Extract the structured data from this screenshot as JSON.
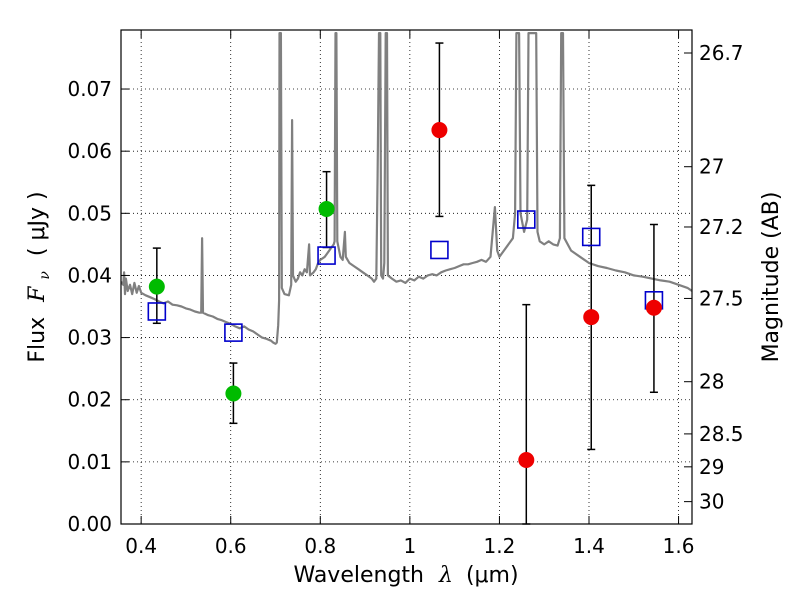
{
  "chart_data": {
    "type": "scatter",
    "xlabel_main": "Wavelength",
    "xlabel_symbol": "λ",
    "xlabel_unit": "(μm)",
    "ylabel_main": "Flux",
    "ylabel_symbol": "F",
    "ylabel_subscript": "ν",
    "ylabel_unit": "( μJy )",
    "y2label": "Magnitude (AB)",
    "xlim": [
      0.355,
      1.63
    ],
    "ylim": [
      0.0,
      0.0795
    ],
    "grid": true,
    "x_ticks": [
      0.4,
      0.6,
      0.8,
      1.0,
      1.2,
      1.4,
      1.6
    ],
    "x_tick_labels": [
      "0.4",
      "0.6",
      "0.8",
      "1",
      "1.2",
      "1.4",
      "1.6"
    ],
    "y_ticks": [
      0.0,
      0.01,
      0.02,
      0.03,
      0.04,
      0.05,
      0.06,
      0.07
    ],
    "y_tick_labels": [
      "0.00",
      "0.01",
      "0.02",
      "0.03",
      "0.04",
      "0.05",
      "0.06",
      "0.07"
    ],
    "mag_ticks": [
      {
        "flux": 0.0758,
        "label": "26.7"
      },
      {
        "flux": 0.0575,
        "label": "27"
      },
      {
        "flux": 0.0478,
        "label": "27.2"
      },
      {
        "flux": 0.0363,
        "label": "27.5"
      },
      {
        "flux": 0.0229,
        "label": "28"
      },
      {
        "flux": 0.0145,
        "label": "28.5"
      },
      {
        "flux": 0.0092,
        "label": "29"
      },
      {
        "flux": 0.0036,
        "label": "30"
      }
    ],
    "colors": {
      "spectrum": "#808080",
      "model": "#0000cc",
      "green": "#00bb00",
      "red": "#ee0000",
      "errorbar": "#000000"
    },
    "model_squares": [
      {
        "x": 0.435,
        "y": 0.0342
      },
      {
        "x": 0.606,
        "y": 0.0308
      },
      {
        "x": 0.814,
        "y": 0.0432
      },
      {
        "x": 1.066,
        "y": 0.0441
      },
      {
        "x": 1.26,
        "y": 0.049
      },
      {
        "x": 1.405,
        "y": 0.0462
      },
      {
        "x": 1.545,
        "y": 0.036
      }
    ],
    "series": [
      {
        "name": "green",
        "points": [
          {
            "x": 0.435,
            "y": 0.0382,
            "ylo": 0.0323,
            "yhi": 0.0444
          },
          {
            "x": 0.606,
            "y": 0.021,
            "ylo": 0.0162,
            "yhi": 0.0259
          },
          {
            "x": 0.814,
            "y": 0.0507,
            "ylo": 0.0445,
            "yhi": 0.0567
          }
        ]
      },
      {
        "name": "red",
        "points": [
          {
            "x": 1.066,
            "y": 0.0634,
            "ylo": 0.0495,
            "yhi": 0.0774
          },
          {
            "x": 1.26,
            "y": 0.0103,
            "ylo": 0.0,
            "yhi": 0.0353
          },
          {
            "x": 1.405,
            "y": 0.0333,
            "ylo": 0.012,
            "yhi": 0.0545
          },
          {
            "x": 1.545,
            "y": 0.0348,
            "ylo": 0.0212,
            "yhi": 0.0482
          }
        ]
      }
    ],
    "spectrum": [
      [
        0.355,
        0.039
      ],
      [
        0.36,
        0.0385
      ],
      [
        0.362,
        0.0405
      ],
      [
        0.364,
        0.037
      ],
      [
        0.366,
        0.0395
      ],
      [
        0.37,
        0.0375
      ],
      [
        0.375,
        0.0385
      ],
      [
        0.38,
        0.037
      ],
      [
        0.385,
        0.0388
      ],
      [
        0.39,
        0.0372
      ],
      [
        0.395,
        0.0383
      ],
      [
        0.4,
        0.0372
      ],
      [
        0.41,
        0.0368
      ],
      [
        0.42,
        0.0365
      ],
      [
        0.43,
        0.0362
      ],
      [
        0.44,
        0.0358
      ],
      [
        0.45,
        0.0355
      ],
      [
        0.46,
        0.0358
      ],
      [
        0.47,
        0.0353
      ],
      [
        0.48,
        0.0352
      ],
      [
        0.49,
        0.035
      ],
      [
        0.5,
        0.0347
      ],
      [
        0.51,
        0.0345
      ],
      [
        0.52,
        0.0342
      ],
      [
        0.53,
        0.034
      ],
      [
        0.534,
        0.034
      ],
      [
        0.536,
        0.046
      ],
      [
        0.538,
        0.034
      ],
      [
        0.55,
        0.0336
      ],
      [
        0.56,
        0.0334
      ],
      [
        0.57,
        0.033
      ],
      [
        0.58,
        0.0328
      ],
      [
        0.59,
        0.0325
      ],
      [
        0.6,
        0.0322
      ],
      [
        0.61,
        0.0318
      ],
      [
        0.62,
        0.0315
      ],
      [
        0.63,
        0.0318
      ],
      [
        0.64,
        0.0313
      ],
      [
        0.65,
        0.031
      ],
      [
        0.66,
        0.0305
      ],
      [
        0.67,
        0.03
      ],
      [
        0.68,
        0.0298
      ],
      [
        0.69,
        0.0295
      ],
      [
        0.695,
        0.0292
      ],
      [
        0.7,
        0.029
      ],
      [
        0.703,
        0.0292
      ],
      [
        0.706,
        0.032
      ],
      [
        0.708,
        0.036
      ],
      [
        0.709,
        0.079
      ],
      [
        0.712,
        0.079
      ],
      [
        0.714,
        0.038
      ],
      [
        0.72,
        0.037
      ],
      [
        0.73,
        0.0368
      ],
      [
        0.735,
        0.0385
      ],
      [
        0.737,
        0.065
      ],
      [
        0.739,
        0.04
      ],
      [
        0.745,
        0.039
      ],
      [
        0.75,
        0.0395
      ],
      [
        0.755,
        0.0405
      ],
      [
        0.76,
        0.04
      ],
      [
        0.765,
        0.041
      ],
      [
        0.77,
        0.0405
      ],
      [
        0.775,
        0.045
      ],
      [
        0.777,
        0.04
      ],
      [
        0.785,
        0.0405
      ],
      [
        0.79,
        0.041
      ],
      [
        0.795,
        0.042
      ],
      [
        0.8,
        0.0425
      ],
      [
        0.81,
        0.043
      ],
      [
        0.82,
        0.044
      ],
      [
        0.83,
        0.045
      ],
      [
        0.832,
        0.0455
      ],
      [
        0.834,
        0.079
      ],
      [
        0.836,
        0.079
      ],
      [
        0.838,
        0.0455
      ],
      [
        0.845,
        0.043
      ],
      [
        0.85,
        0.0425
      ],
      [
        0.855,
        0.047
      ],
      [
        0.857,
        0.043
      ],
      [
        0.865,
        0.042
      ],
      [
        0.875,
        0.0415
      ],
      [
        0.885,
        0.041
      ],
      [
        0.895,
        0.0405
      ],
      [
        0.905,
        0.04
      ],
      [
        0.915,
        0.0395
      ],
      [
        0.92,
        0.039
      ],
      [
        0.925,
        0.0395
      ],
      [
        0.928,
        0.056
      ],
      [
        0.931,
        0.079
      ],
      [
        0.934,
        0.079
      ],
      [
        0.936,
        0.04
      ],
      [
        0.94,
        0.0395
      ],
      [
        0.943,
        0.042
      ],
      [
        0.946,
        0.079
      ],
      [
        0.949,
        0.079
      ],
      [
        0.951,
        0.04
      ],
      [
        0.96,
        0.0395
      ],
      [
        0.97,
        0.039
      ],
      [
        0.98,
        0.0392
      ],
      [
        0.99,
        0.0388
      ],
      [
        1.0,
        0.0395
      ],
      [
        1.01,
        0.0392
      ],
      [
        1.02,
        0.0398
      ],
      [
        1.03,
        0.0395
      ],
      [
        1.04,
        0.04
      ],
      [
        1.05,
        0.0402
      ],
      [
        1.06,
        0.04
      ],
      [
        1.07,
        0.0405
      ],
      [
        1.08,
        0.0408
      ],
      [
        1.09,
        0.041
      ],
      [
        1.1,
        0.0412
      ],
      [
        1.11,
        0.0415
      ],
      [
        1.12,
        0.0418
      ],
      [
        1.13,
        0.0418
      ],
      [
        1.14,
        0.042
      ],
      [
        1.15,
        0.0422
      ],
      [
        1.16,
        0.0425
      ],
      [
        1.17,
        0.0422
      ],
      [
        1.18,
        0.043
      ],
      [
        1.185,
        0.047
      ],
      [
        1.19,
        0.051
      ],
      [
        1.195,
        0.044
      ],
      [
        1.2,
        0.043
      ],
      [
        1.21,
        0.044
      ],
      [
        1.22,
        0.045
      ],
      [
        1.23,
        0.046
      ],
      [
        1.235,
        0.05
      ],
      [
        1.238,
        0.079
      ],
      [
        1.244,
        0.079
      ],
      [
        1.247,
        0.05
      ],
      [
        1.255,
        0.047
      ],
      [
        1.262,
        0.049
      ],
      [
        1.265,
        0.079
      ],
      [
        1.282,
        0.079
      ],
      [
        1.285,
        0.047
      ],
      [
        1.29,
        0.0455
      ],
      [
        1.3,
        0.045
      ],
      [
        1.31,
        0.0455
      ],
      [
        1.32,
        0.045
      ],
      [
        1.33,
        0.0448
      ],
      [
        1.335,
        0.046
      ],
      [
        1.338,
        0.079
      ],
      [
        1.342,
        0.079
      ],
      [
        1.345,
        0.046
      ],
      [
        1.36,
        0.044
      ],
      [
        1.38,
        0.043
      ],
      [
        1.4,
        0.042
      ],
      [
        1.42,
        0.0415
      ],
      [
        1.44,
        0.0412
      ],
      [
        1.46,
        0.0408
      ],
      [
        1.48,
        0.0405
      ],
      [
        1.5,
        0.04
      ],
      [
        1.52,
        0.0398
      ],
      [
        1.54,
        0.0395
      ],
      [
        1.56,
        0.0392
      ],
      [
        1.58,
        0.039
      ],
      [
        1.6,
        0.0385
      ],
      [
        1.62,
        0.038
      ],
      [
        1.63,
        0.0375
      ]
    ]
  }
}
